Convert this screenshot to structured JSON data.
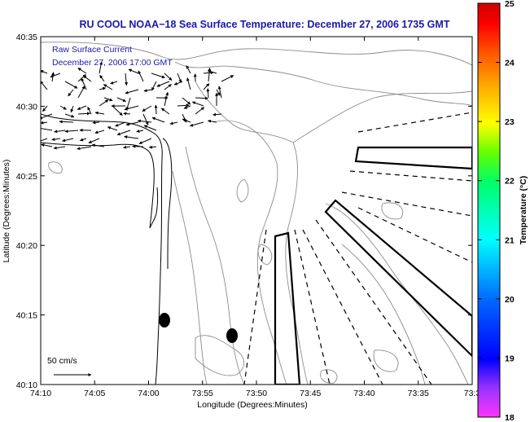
{
  "chart_data": {
    "type": "map",
    "title": "RU COOL  NOAA−18  Sea Surface Temperature:  December 27, 2006 1735 GMT",
    "xlabel": "Longitude (Degrees:Minutes)",
    "ylabel": "Latitude (Degrees:Minutes)",
    "x_ticks": [
      "74:10",
      "74:05",
      "74:00",
      "73:55",
      "73:50",
      "73:45",
      "73:40",
      "73:35",
      "73:3"
    ],
    "y_ticks": [
      "40:10",
      "40:15",
      "40:20",
      "40:25",
      "40:30",
      "40:35"
    ],
    "xlim_minutes_west": [
      10,
      30
    ],
    "ylim_minutes_north": [
      10,
      35
    ],
    "colorbar": {
      "label": "Temperature (°C)",
      "ticks": [
        "18",
        "19",
        "20",
        "21",
        "22",
        "23",
        "24",
        "25"
      ],
      "range": [
        18,
        25
      ]
    },
    "legend": {
      "line1": "Raw Surface Current",
      "line2": "December 27, 2006 17:00 GMT"
    },
    "scale_label": "50 cm/s",
    "sst_field": "cloud-covered (no data colored)"
  }
}
